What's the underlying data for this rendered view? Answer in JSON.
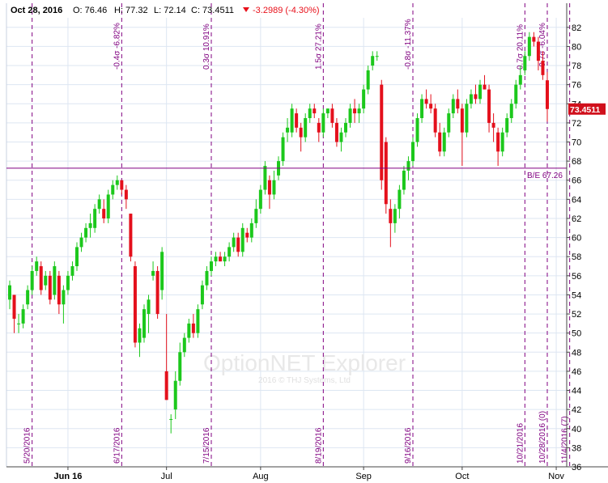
{
  "header": {
    "date": "Oct 28, 2016",
    "open": "O: 76.46",
    "high": "H: 77.32",
    "low": "L: 72.14",
    "close": "C: 73.4511",
    "change": "-3.2989 (-4.30%)",
    "change_color": "#e8101a"
  },
  "watermark": {
    "title": "OptionNET Explorer",
    "sub": "2016 © THJ Systems, Ltd"
  },
  "colors": {
    "up": "#1cc81c",
    "down": "#e4101c",
    "purple": "#800080",
    "grid": "#dde6f2",
    "last_price_bg": "#d0101c"
  },
  "chart_data": {
    "type": "candlestick",
    "y_axis": {
      "min": 36,
      "max": 83,
      "ticks": [
        36,
        38,
        40,
        42,
        44,
        46,
        48,
        50,
        52,
        54,
        56,
        58,
        60,
        62,
        64,
        66,
        68,
        70,
        72,
        74,
        76,
        78,
        80,
        82
      ],
      "side": "right"
    },
    "x_axis": {
      "labels": [
        {
          "label": "Jun 16",
          "date": "2016-06-01"
        },
        {
          "label": "Jul",
          "date": "2016-07-01"
        },
        {
          "label": "Aug",
          "date": "2016-08-01"
        },
        {
          "label": "Sep",
          "date": "2016-09-01"
        },
        {
          "label": "Oct",
          "date": "2016-10-03"
        },
        {
          "label": "Nov",
          "date": "2016-11-01"
        }
      ]
    },
    "last_price": "73.4511",
    "breakeven": {
      "value": 67.26,
      "label": "B/E 67.26"
    },
    "vlines": [
      {
        "date": "5/20/2016",
        "top_label": ""
      },
      {
        "date": "6/17/2016",
        "top_label": "-0.4σ -6.82%"
      },
      {
        "date": "7/15/2016",
        "top_label": "0.3σ 10.91%"
      },
      {
        "date": "8/19/2016",
        "top_label": "1.5σ 27.21%"
      },
      {
        "date": "9/16/2016",
        "top_label": "-0.8σ -11.37%"
      },
      {
        "date": "10/21/2016",
        "top_label": "0.7σ 20.11%"
      },
      {
        "date": "10/28/2016 (0)",
        "top_label": "-0.7σ -6.04%"
      },
      {
        "date": "11/4/2016 (7)",
        "top_label": ""
      }
    ],
    "candles": [
      [
        53.5,
        55.5,
        52.5,
        55.0
      ],
      [
        54.0,
        54.0,
        50.0,
        51.5
      ],
      [
        51.0,
        52.0,
        50.0,
        51.0
      ],
      [
        51.0,
        53.0,
        50.5,
        52.5
      ],
      [
        53.0,
        55.0,
        52.5,
        54.5
      ],
      [
        54.5,
        57.0,
        54.0,
        56.5
      ],
      [
        56.5,
        58.0,
        56.0,
        57.5
      ],
      [
        57.0,
        57.5,
        54.0,
        54.5
      ],
      [
        55.0,
        56.5,
        54.5,
        56.0
      ],
      [
        56.0,
        56.5,
        53.0,
        53.5
      ],
      [
        54.0,
        57.5,
        53.5,
        57.0
      ],
      [
        56.0,
        56.5,
        52.0,
        53.0
      ],
      [
        53.0,
        55.0,
        51.0,
        54.5
      ],
      [
        54.5,
        56.5,
        54.0,
        56.0
      ],
      [
        56.0,
        57.5,
        55.5,
        57.0
      ],
      [
        57.0,
        59.5,
        56.5,
        59.0
      ],
      [
        59.0,
        60.5,
        58.5,
        60.0
      ],
      [
        60.0,
        61.5,
        59.5,
        61.0
      ],
      [
        61.0,
        62.5,
        60.0,
        61.5
      ],
      [
        61.0,
        63.5,
        60.5,
        63.0
      ],
      [
        63.0,
        64.5,
        62.5,
        64.0
      ],
      [
        63.0,
        64.0,
        61.5,
        62.0
      ],
      [
        62.0,
        65.0,
        61.5,
        64.5
      ],
      [
        64.5,
        66.0,
        64.0,
        65.5
      ],
      [
        65.5,
        66.5,
        65.0,
        66.0
      ],
      [
        66.0,
        66.0,
        64.5,
        65.0
      ],
      [
        65.0,
        65.5,
        63.0,
        64.0
      ],
      [
        62.5,
        62.5,
        57.5,
        58.0
      ],
      [
        57.0,
        57.5,
        48.5,
        49.0
      ],
      [
        49.0,
        51.0,
        47.5,
        50.5
      ],
      [
        49.5,
        53.0,
        49.0,
        52.5
      ],
      [
        52.0,
        54.0,
        50.0,
        53.5
      ],
      [
        56.0,
        57.5,
        55.5,
        56.5
      ],
      [
        56.5,
        57.0,
        51.5,
        52.0
      ],
      [
        54.5,
        59.0,
        53.5,
        58.5
      ],
      [
        46.0,
        52.0,
        43.0,
        43.0
      ],
      [
        41.0,
        41.5,
        39.5,
        41.0
      ],
      [
        42.0,
        46.0,
        41.0,
        45.0
      ],
      [
        45.0,
        49.0,
        44.5,
        48.0
      ],
      [
        48.0,
        50.0,
        47.5,
        49.5
      ],
      [
        49.5,
        51.5,
        49.0,
        51.0
      ],
      [
        51.0,
        52.0,
        49.5,
        50.0
      ],
      [
        50.0,
        53.0,
        49.5,
        52.5
      ],
      [
        53.0,
        55.5,
        52.5,
        55.0
      ],
      [
        55.0,
        57.0,
        54.5,
        56.5
      ],
      [
        56.5,
        58.0,
        56.0,
        57.5
      ],
      [
        57.5,
        58.5,
        57.0,
        58.0
      ],
      [
        58.0,
        58.5,
        57.5,
        57.5
      ],
      [
        57.5,
        58.5,
        57.0,
        58.0
      ],
      [
        58.0,
        59.5,
        57.5,
        59.0
      ],
      [
        59.0,
        60.5,
        58.5,
        60.0
      ],
      [
        60.0,
        60.5,
        58.0,
        58.5
      ],
      [
        58.5,
        61.5,
        58.0,
        61.0
      ],
      [
        60.5,
        61.0,
        59.5,
        60.0
      ],
      [
        60.0,
        62.0,
        59.5,
        61.5
      ],
      [
        61.5,
        64.0,
        61.0,
        63.0
      ],
      [
        63.0,
        65.5,
        62.5,
        65.0
      ],
      [
        65.0,
        68.0,
        64.5,
        67.5
      ],
      [
        66.0,
        66.5,
        63.0,
        64.5
      ],
      [
        64.5,
        67.0,
        64.0,
        66.0
      ],
      [
        66.5,
        68.5,
        66.0,
        68.0
      ],
      [
        68.0,
        71.0,
        67.5,
        70.5
      ],
      [
        71.0,
        72.5,
        70.0,
        71.5
      ],
      [
        71.0,
        74.0,
        70.5,
        73.5
      ],
      [
        73.0,
        73.5,
        71.0,
        71.5
      ],
      [
        71.5,
        72.0,
        69.0,
        70.5
      ],
      [
        70.5,
        73.0,
        70.0,
        72.5
      ],
      [
        72.5,
        74.0,
        72.0,
        73.5
      ],
      [
        73.5,
        74.0,
        72.5,
        73.0
      ],
      [
        72.0,
        72.5,
        70.0,
        71.0
      ],
      [
        71.0,
        73.5,
        70.5,
        73.0
      ],
      [
        73.0,
        73.5,
        72.5,
        73.5
      ],
      [
        73.5,
        74.0,
        71.5,
        72.0
      ],
      [
        72.0,
        72.5,
        69.5,
        70.0
      ],
      [
        70.0,
        71.5,
        69.0,
        71.0
      ],
      [
        71.0,
        72.5,
        70.5,
        72.0
      ],
      [
        72.0,
        74.0,
        71.5,
        73.5
      ],
      [
        73.5,
        74.5,
        72.0,
        73.0
      ],
      [
        73.0,
        74.0,
        72.0,
        73.5
      ],
      [
        73.5,
        76.0,
        73.0,
        75.5
      ],
      [
        75.5,
        78.0,
        75.0,
        77.5
      ],
      [
        78.0,
        79.5,
        77.5,
        79.0
      ],
      [
        79.0,
        79.5,
        78.5,
        79.0
      ],
      [
        76.0,
        76.5,
        65.0,
        66.0
      ],
      [
        70.0,
        70.5,
        62.5,
        63.5
      ],
      [
        63.0,
        64.0,
        59.0,
        61.5
      ],
      [
        61.5,
        63.5,
        60.5,
        63.0
      ],
      [
        63.0,
        65.5,
        62.0,
        65.0
      ],
      [
        65.0,
        67.5,
        64.5,
        67.0
      ],
      [
        67.0,
        68.5,
        66.0,
        68.0
      ],
      [
        68.0,
        70.5,
        67.5,
        70.0
      ],
      [
        70.0,
        73.0,
        69.5,
        72.5
      ],
      [
        72.5,
        75.0,
        72.0,
        74.5
      ],
      [
        74.5,
        75.5,
        73.5,
        74.0
      ],
      [
        74.0,
        75.0,
        73.0,
        73.5
      ],
      [
        73.5,
        74.0,
        70.5,
        71.0
      ],
      [
        71.0,
        72.0,
        68.5,
        69.0
      ],
      [
        69.0,
        71.5,
        68.5,
        71.0
      ],
      [
        71.0,
        73.5,
        70.5,
        73.0
      ],
      [
        73.0,
        75.0,
        72.5,
        74.5
      ],
      [
        74.5,
        75.5,
        73.0,
        73.5
      ],
      [
        73.5,
        74.0,
        67.5,
        71.0
      ],
      [
        71.0,
        74.5,
        70.5,
        74.0
      ],
      [
        74.0,
        75.5,
        73.5,
        75.0
      ],
      [
        75.0,
        76.0,
        74.0,
        74.5
      ],
      [
        74.5,
        76.5,
        74.0,
        76.0
      ],
      [
        76.0,
        77.0,
        75.5,
        75.5
      ],
      [
        75.5,
        76.0,
        71.0,
        72.0
      ],
      [
        72.0,
        73.0,
        70.0,
        71.5
      ],
      [
        71.0,
        71.5,
        67.5,
        69.0
      ],
      [
        69.0,
        71.5,
        68.5,
        71.0
      ],
      [
        71.0,
        73.0,
        70.5,
        72.5
      ],
      [
        72.5,
        74.5,
        72.0,
        74.0
      ],
      [
        74.0,
        76.5,
        73.5,
        76.0
      ],
      [
        76.0,
        78.0,
        75.5,
        77.0
      ],
      [
        77.5,
        79.5,
        77.0,
        79.0
      ],
      [
        79.0,
        81.5,
        78.5,
        81.0
      ],
      [
        81.0,
        81.5,
        80.0,
        80.5
      ],
      [
        80.5,
        81.0,
        77.5,
        78.5
      ],
      [
        78.5,
        79.5,
        76.5,
        77.0
      ],
      [
        76.46,
        77.32,
        72.14,
        73.4511
      ]
    ]
  }
}
